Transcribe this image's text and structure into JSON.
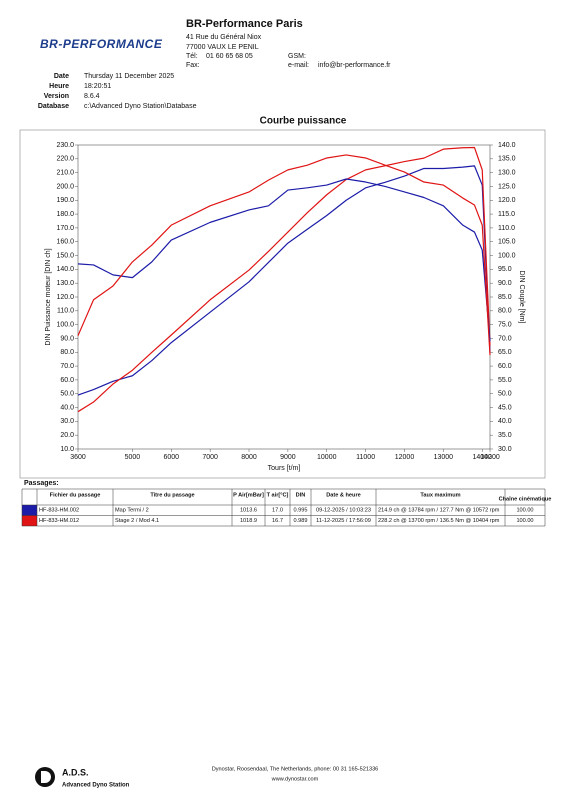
{
  "header": {
    "logo": "BR-PERFORMANCE",
    "company": "BR-Performance Paris",
    "address1": "41 Rue du Général Niox",
    "address2": "77000 VAUX LE PENIL",
    "tel_label": "Tél:",
    "tel": "01 60 65 68 05",
    "gsm_label": "GSM:",
    "fax_label": "Fax:",
    "email_label": "e-mail:",
    "email": "info@br-performance.fr"
  },
  "meta": [
    {
      "label": "Date",
      "value": "Thursday 11 December 2025"
    },
    {
      "label": "Heure",
      "value": "18:20:51"
    },
    {
      "label": "Version",
      "value": "8.6.4"
    },
    {
      "label": "Database",
      "value": "c:\\Advanced Dyno Station\\Database"
    }
  ],
  "chart_data": {
    "type": "line",
    "title": "Courbe puissance",
    "x_label": "Tours [t/m]",
    "y_label": "DIN Puissance moteur [DIN ch]",
    "y2_label": "DIN Couple [Nm]",
    "x": [
      3600,
      4000,
      4500,
      5000,
      5500,
      6000,
      7000,
      8000,
      8500,
      9000,
      9500,
      10000,
      10500,
      11000,
      11500,
      12000,
      12500,
      13000,
      13500,
      13800,
      14000,
      14200
    ],
    "series": [
      {
        "color": "#1c1ca8",
        "values": [
          49,
          53,
          59,
          63,
          74,
          87,
          109,
          131,
          145,
          159,
          169,
          179,
          190,
          199,
          203,
          207.5,
          213,
          213,
          214,
          214.9,
          201,
          80
        ]
      },
      {
        "color": "#e01414",
        "values": [
          37,
          44,
          57,
          67,
          80,
          92.5,
          118,
          139.5,
          153,
          167,
          181,
          194,
          205,
          212,
          215,
          218,
          220.5,
          227,
          228,
          228.2,
          212,
          85
        ]
      },
      {
        "color": "#1c1ca8",
        "axis": "y2",
        "values": [
          97,
          96.6,
          93,
          92,
          97.7,
          105.6,
          112,
          116.5,
          118,
          123.7,
          124.5,
          125.5,
          127.7,
          126.6,
          125,
          123,
          121,
          118,
          111,
          108.5,
          102,
          69
        ]
      },
      {
        "color": "#e01414",
        "axis": "y2",
        "values": [
          71,
          84,
          89,
          97.7,
          103.8,
          111,
          118,
          123,
          127.3,
          131,
          132.7,
          135.3,
          136.4,
          135.3,
          132.7,
          130.2,
          126.6,
          125.5,
          120.8,
          118.3,
          111,
          64
        ]
      }
    ],
    "xlim": [
      3600,
      14200
    ],
    "xticks": [
      3600,
      5000,
      6000,
      7000,
      8000,
      9000,
      10000,
      11000,
      12000,
      13000,
      14000,
      14200
    ],
    "ylim": [
      10,
      230
    ],
    "yticks": [
      {
        "value": 10,
        "label": "10.0"
      },
      {
        "value": 20,
        "label": "20.0"
      },
      {
        "value": 30,
        "label": "30.0"
      },
      {
        "value": 40,
        "label": "40.0"
      },
      {
        "value": 50,
        "label": "50.0"
      },
      {
        "value": 60,
        "label": "60.0"
      },
      {
        "value": 70,
        "label": "70.0"
      },
      {
        "value": 80,
        "label": "80.0"
      },
      {
        "value": 90,
        "label": "90.0"
      },
      {
        "value": 100,
        "label": "100.0"
      },
      {
        "value": 110,
        "label": "110.0"
      },
      {
        "value": 120,
        "label": "120.0"
      },
      {
        "value": 130,
        "label": "130.0"
      },
      {
        "value": 140,
        "label": "140.0"
      },
      {
        "value": 150,
        "label": "150.0"
      },
      {
        "value": 160,
        "label": "160.0"
      },
      {
        "value": 170,
        "label": "170.0"
      },
      {
        "value": 180,
        "label": "180.0"
      },
      {
        "value": 190,
        "label": "190.0"
      },
      {
        "value": 200,
        "label": "200.0"
      },
      {
        "value": 210,
        "label": "210.0"
      },
      {
        "value": 220,
        "label": "220.0"
      },
      {
        "value": 230,
        "label": "230.0"
      }
    ],
    "y2lim": [
      30,
      140
    ],
    "y2ticks": [
      {
        "value": 30,
        "label": "30.0"
      },
      {
        "value": 35,
        "label": "35.0"
      },
      {
        "value": 40,
        "label": "40.0"
      },
      {
        "value": 45,
        "label": "45.0"
      },
      {
        "value": 50,
        "label": "50.0"
      },
      {
        "value": 55,
        "label": "55.0"
      },
      {
        "value": 60,
        "label": "60.0"
      },
      {
        "value": 65,
        "label": "65.0"
      },
      {
        "value": 70,
        "label": "70.0"
      },
      {
        "value": 75,
        "label": "75.0"
      },
      {
        "value": 80,
        "label": "80.0"
      },
      {
        "value": 85,
        "label": "85.0"
      },
      {
        "value": 90,
        "label": "90.0"
      },
      {
        "value": 95,
        "label": "95.0"
      },
      {
        "value": 100,
        "label": "100.0"
      },
      {
        "value": 105,
        "label": "105.0"
      },
      {
        "value": 110,
        "label": "110.0"
      },
      {
        "value": 115,
        "label": "115.0"
      },
      {
        "value": 120,
        "label": "120.0"
      },
      {
        "value": 125,
        "label": "125.0"
      },
      {
        "value": 130,
        "label": "130.0"
      },
      {
        "value": 135,
        "label": "135.0"
      },
      {
        "value": 140,
        "label": "140.0"
      }
    ],
    "grid": false
  },
  "table": {
    "title": "Passages:",
    "headers": [
      "Fichier du passage",
      "Titre du passage",
      "P Air[mBar]",
      "T air[°C]",
      "DIN",
      "Date & heure",
      "Taux maximum",
      "Chaîne cinématique"
    ],
    "rows": [
      {
        "color": "#1c1ca8",
        "cells": [
          "HF-833-HM.002",
          "Map Termi / 2",
          "1013.6",
          "17.0",
          "0.995",
          "09-12-2025 / 10:03:23",
          "214.9 ch @ 13784 rpm / 127.7 Nm @ 10572 rpm",
          "100.00"
        ]
      },
      {
        "color": "#e01414",
        "cells": [
          "HF-833-HM.012",
          "Stage 2 / Mod 4.1",
          "1018.9",
          "16.7",
          "0.989",
          "11-12-2025 / 17:56:09",
          "228.2 ch @ 13700 rpm / 136.5 Nm @ 10404 rpm",
          "100.00"
        ]
      }
    ]
  },
  "footer": {
    "brand": "A.D.S.",
    "brand_sub": "Advanced Dyno Station",
    "line1": "Dynostar,  Roosendaal, The Netherlands, phone: 00 31 165-521336",
    "line2": "www.dynostar.com"
  }
}
